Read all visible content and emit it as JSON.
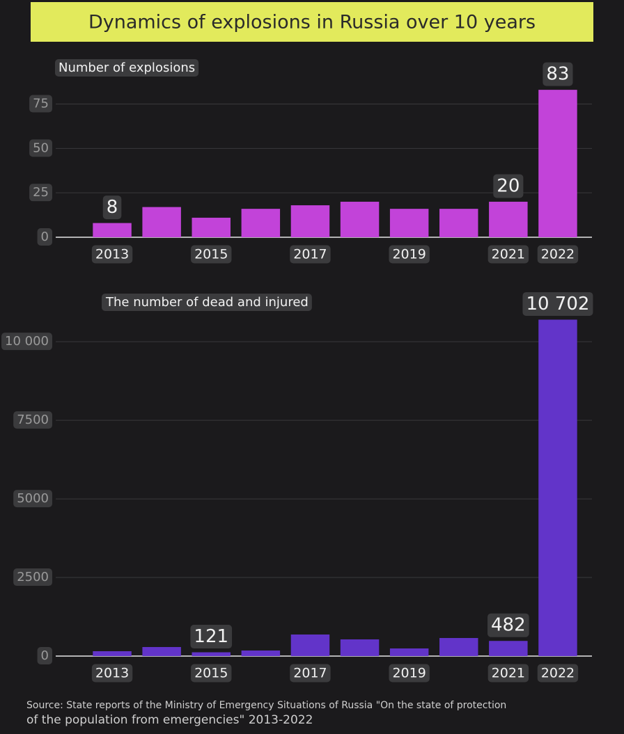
{
  "title": "Dynamics of explosions in Russia over 10 years",
  "source": [
    "Source: State reports of the Ministry of Emergency Situations of Russia \"On the state of protection",
    "of the population from emergencies\" 2013-2022"
  ],
  "chart_data": [
    {
      "type": "bar",
      "y_label": "Number of explosions",
      "categories": [
        "2013",
        null,
        "2015",
        null,
        "2017",
        null,
        "2019",
        null,
        "2021",
        "2022"
      ],
      "values": [
        8,
        17,
        11,
        16,
        18,
        20,
        16,
        16,
        20,
        83
      ],
      "value_labels": [
        "8",
        null,
        null,
        null,
        null,
        null,
        null,
        null,
        "20",
        "83"
      ],
      "color": "#c243d9",
      "ylim": [
        0,
        85
      ],
      "yticks": [
        0,
        25,
        50,
        75
      ],
      "grid": true
    },
    {
      "type": "bar",
      "y_label": "The number of dead and injured",
      "categories": [
        "2013",
        null,
        "2015",
        null,
        "2017",
        null,
        "2019",
        null,
        "2021",
        "2022"
      ],
      "values": [
        155,
        288,
        121,
        177,
        686,
        531,
        243,
        575,
        482,
        10702
      ],
      "value_labels": [
        null,
        null,
        "121",
        null,
        null,
        null,
        null,
        null,
        "482",
        "10 702"
      ],
      "color": "#6234c9",
      "ylim": [
        0,
        11000
      ],
      "yticks": [
        0,
        2500,
        5000,
        7500,
        {
          "value": 10000,
          "label": "10 000"
        }
      ],
      "grid": true
    }
  ]
}
